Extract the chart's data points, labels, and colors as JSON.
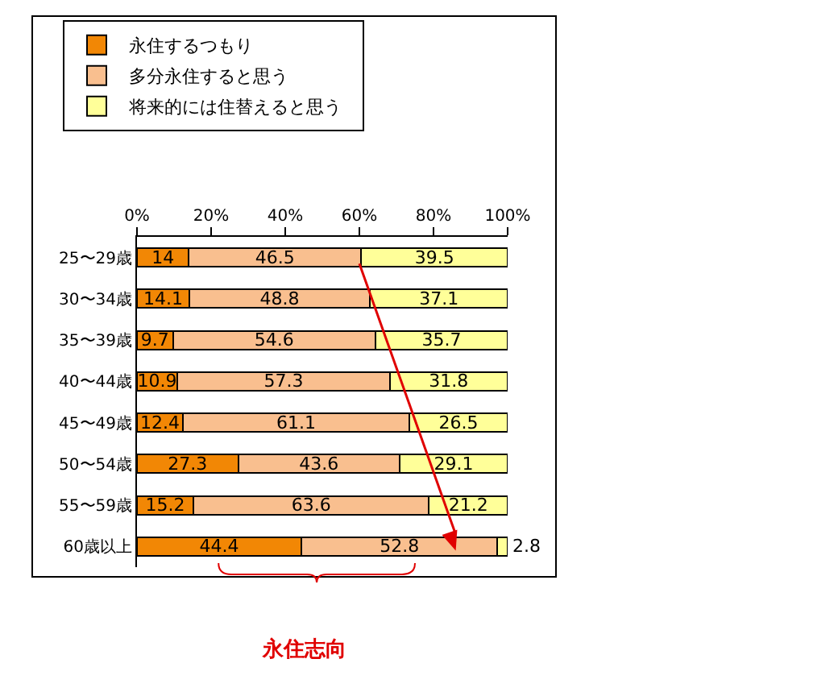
{
  "chart_data": {
    "type": "bar",
    "orientation": "horizontal",
    "stacked": true,
    "categories": [
      "25〜29歳",
      "30〜34歳",
      "35〜39歳",
      "40〜44歳",
      "45〜49歳",
      "50〜54歳",
      "55〜59歳",
      "60歳以上"
    ],
    "series": [
      {
        "name": "永住するつもり",
        "color": "#f28705",
        "values": [
          14,
          14.1,
          9.7,
          10.9,
          12.4,
          27.3,
          15.2,
          44.4
        ]
      },
      {
        "name": "多分永住すると思う",
        "color": "#f9bf8f",
        "values": [
          46.5,
          48.8,
          54.6,
          57.3,
          61.1,
          43.6,
          63.6,
          52.8
        ]
      },
      {
        "name": "将来的には住替えると思う",
        "color": "#ffff99",
        "values": [
          39.5,
          37.1,
          35.7,
          31.8,
          26.5,
          29.1,
          21.2,
          2.8
        ]
      }
    ],
    "xlim": [
      0,
      100
    ],
    "xticks": [
      {
        "value": 0,
        "label": "0%"
      },
      {
        "value": 20,
        "label": "20%"
      },
      {
        "value": 40,
        "label": "40%"
      },
      {
        "value": 60,
        "label": "60%"
      },
      {
        "value": 80,
        "label": "80%"
      },
      {
        "value": 100,
        "label": "100%"
      }
    ],
    "data_labels": true,
    "grid": false,
    "legend": "top",
    "annotations": [
      "永住志向"
    ]
  }
}
